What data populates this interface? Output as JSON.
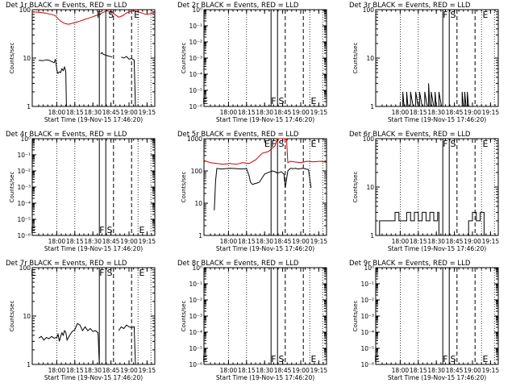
{
  "figure": {
    "xlabel": "Start Time (19-Nov-15 17:46:20)",
    "ylabel": "Counts/sec",
    "x_ticks": [
      "18:00",
      "18:15",
      "18:30",
      "18:45",
      "19:00",
      "19:15"
    ],
    "marker_letters": [
      "F",
      "S",
      "E"
    ],
    "colors": {
      "events": "#000000",
      "lld": "#d00000",
      "axes": "#000000"
    }
  },
  "chart_data": [
    {
      "type": "line",
      "title": "Det 1r BLACK = Events, RED = LLD",
      "xlabel": "Start Time (19-Nov-15 17:46:20)",
      "ylabel": "Counts/sec",
      "yscale": "log",
      "ylim": [
        1,
        100
      ],
      "y_tick_labels": [
        "1",
        "10",
        "100"
      ],
      "xlim_minutes": [
        -5,
        90
      ],
      "solid_lines_minutes": [
        47,
        52
      ],
      "dashed_lines_minutes": [
        58,
        72
      ],
      "dotted_lines_minutes": [
        14,
        28,
        77,
        87
      ],
      "markers": [
        {
          "text": "F",
          "x": 47,
          "pos": "top"
        },
        {
          "text": "S",
          "x": 56,
          "pos": "top"
        },
        {
          "text": "E",
          "x": 76,
          "pos": "top"
        }
      ],
      "series": [
        {
          "name": "BLACK = Events",
          "color": "#000000",
          "x": [
            0,
            3,
            6,
            8,
            10,
            12,
            13,
            14,
            14.5,
            15,
            16,
            17,
            18,
            19,
            20,
            21,
            21.5
          ],
          "y": [
            9,
            8.8,
            9.2,
            9,
            8.5,
            8,
            9.5,
            6,
            5,
            4.8,
            5.2,
            5,
            6,
            5.5,
            6.5,
            5.2,
            1
          ]
        },
        {
          "name": "BLACK = Events",
          "color": "#000000",
          "x": [
            48,
            49,
            50,
            52,
            54,
            57
          ],
          "y": [
            12,
            13,
            12,
            11.5,
            11,
            10.5
          ]
        },
        {
          "name": "BLACK = Events",
          "color": "#000000",
          "x": [
            64,
            66,
            68,
            70,
            72,
            74,
            75
          ],
          "y": [
            10.5,
            10,
            10.8,
            9.5,
            9.8,
            9,
            1
          ]
        },
        {
          "name": "RED = LLD",
          "color": "#d00000",
          "x": [
            -5,
            0,
            5,
            10,
            13,
            15,
            17,
            20,
            23,
            26,
            29,
            32,
            35,
            38,
            41,
            44,
            47,
            50,
            53,
            56,
            59,
            62,
            65,
            68,
            71,
            74,
            77,
            80,
            83,
            86,
            90
          ],
          "y": [
            90,
            88,
            85,
            80,
            75,
            65,
            58,
            52,
            50,
            52,
            55,
            58,
            62,
            66,
            70,
            75,
            80,
            88,
            95,
            90,
            80,
            70,
            75,
            85,
            92,
            95,
            90,
            85,
            80,
            82,
            88
          ]
        }
      ]
    },
    {
      "type": "line",
      "title": "Det 2r BLACK = Events, RED = LLD",
      "xlabel": "Start Time (19-Nov-15 17:46:20)",
      "ylabel": "Counts/sec",
      "yscale": "log",
      "ylim": [
        1e-06,
        1
      ],
      "y_tick_labels": [
        "10⁰",
        "10⁻¹",
        "10⁻²",
        "10⁻³",
        "10⁻⁴",
        "10⁻⁵",
        "10⁻⁶"
      ],
      "xlim_minutes": [
        -5,
        90
      ],
      "solid_lines_minutes": [
        47,
        52
      ],
      "dashed_lines_minutes": [
        58,
        72
      ],
      "dotted_lines_minutes": [
        14,
        28,
        77,
        87
      ],
      "markers": [
        {
          "text": "E",
          "x": -4,
          "pos": "bottom"
        },
        {
          "text": "F",
          "x": 49,
          "pos": "bottom"
        },
        {
          "text": "S",
          "x": 55,
          "pos": "bottom"
        },
        {
          "text": "E",
          "x": 80,
          "pos": "bottom"
        }
      ],
      "series": []
    },
    {
      "type": "line",
      "title": "Det 3r BLACK = Events, RED = LLD",
      "xlabel": "Start Time (19-Nov-15 17:46:20)",
      "ylabel": "Counts/sec",
      "yscale": "log",
      "ylim": [
        1,
        100
      ],
      "y_tick_labels": [
        "1",
        "10",
        "100"
      ],
      "xlim_minutes": [
        -5,
        90
      ],
      "solid_lines_minutes": [
        47,
        52
      ],
      "dashed_lines_minutes": [
        58,
        72
      ],
      "dotted_lines_minutes": [
        14,
        28,
        77,
        87
      ],
      "markers": [
        {
          "text": "F",
          "x": 49,
          "pos": "top"
        },
        {
          "text": "S",
          "x": 55,
          "pos": "top"
        },
        {
          "text": "E",
          "x": 80,
          "pos": "top"
        }
      ],
      "series": [
        {
          "name": "BLACK = Events",
          "color": "#000000",
          "x": [
            15,
            16,
            16,
            17,
            19,
            19,
            20,
            22,
            22,
            24,
            26,
            26,
            28,
            29,
            29,
            31,
            33,
            33,
            35,
            36,
            36,
            37,
            38,
            38,
            40,
            41,
            41,
            42,
            44,
            44,
            46
          ],
          "y": [
            1,
            1,
            2,
            1,
            1,
            2,
            1,
            1,
            2,
            1,
            1,
            2,
            1,
            1,
            2,
            1,
            1,
            2,
            1,
            1,
            3,
            1,
            1,
            2,
            1,
            1,
            2,
            1,
            1,
            2,
            1
          ]
        },
        {
          "name": "BLACK = Events",
          "color": "#000000",
          "x": [
            62,
            62,
            63,
            64,
            64,
            65,
            66,
            66,
            67
          ],
          "y": [
            1,
            2,
            1,
            1,
            2,
            1,
            1,
            2,
            1
          ]
        }
      ]
    },
    {
      "type": "line",
      "title": "Det 4r BLACK = Events, RED = LLD",
      "xlabel": "Start Time (19-Nov-15 17:46:20)",
      "ylabel": "Counts/sec",
      "yscale": "log",
      "ylim": [
        1e-06,
        1
      ],
      "y_tick_labels": [
        "10⁰",
        "10⁻¹",
        "10⁻²",
        "10⁻³",
        "10⁻⁴",
        "10⁻⁵",
        "10⁻⁶"
      ],
      "xlim_minutes": [
        -5,
        90
      ],
      "solid_lines_minutes": [
        47,
        52
      ],
      "dashed_lines_minutes": [
        58,
        72
      ],
      "dotted_lines_minutes": [
        14,
        28,
        77,
        87
      ],
      "markers": [
        {
          "text": "E",
          "x": -4,
          "pos": "bottom"
        },
        {
          "text": "F",
          "x": 49,
          "pos": "bottom"
        },
        {
          "text": "S",
          "x": 55,
          "pos": "bottom"
        },
        {
          "text": "E",
          "x": 80,
          "pos": "bottom"
        }
      ],
      "series": []
    },
    {
      "type": "line",
      "title": "Det 5r BLACK = Events, RED = LLD",
      "xlabel": "Start Time (19-Nov-15 17:46:20)",
      "ylabel": "Counts/sec",
      "yscale": "log",
      "ylim": [
        1,
        1000
      ],
      "y_tick_labels": [
        "1",
        "10",
        "100",
        "1000"
      ],
      "xlim_minutes": [
        -5,
        90
      ],
      "solid_lines_minutes": [
        47,
        52
      ],
      "dashed_lines_minutes": [
        58,
        72
      ],
      "dotted_lines_minutes": [
        14,
        28,
        77,
        87
      ],
      "markers": [
        {
          "text": "E",
          "x": 44,
          "pos": "top"
        },
        {
          "text": "F",
          "x": 49,
          "pos": "top"
        },
        {
          "text": "S",
          "x": 55,
          "pos": "top"
        },
        {
          "text": "E",
          "x": 80,
          "pos": "top"
        }
      ],
      "series": [
        {
          "name": "BLACK = Events",
          "color": "#000000",
          "x": [
            3,
            4,
            5,
            8,
            12,
            16,
            20,
            24,
            28,
            30,
            31,
            32,
            33,
            34,
            36,
            38,
            40,
            42,
            45,
            48,
            50,
            52,
            55,
            57,
            58,
            60,
            62,
            64,
            66,
            68,
            70,
            72,
            74,
            76,
            78
          ],
          "y": [
            6,
            50,
            120,
            115,
            118,
            120,
            118,
            115,
            118,
            70,
            45,
            40,
            38,
            40,
            42,
            45,
            60,
            80,
            90,
            100,
            95,
            85,
            95,
            80,
            30,
            100,
            120,
            118,
            120,
            115,
            118,
            120,
            115,
            110,
            30
          ]
        },
        {
          "name": "RED = LLD",
          "color": "#d00000",
          "x": [
            -5,
            0,
            5,
            10,
            15,
            20,
            25,
            30,
            35,
            40,
            45,
            50,
            52,
            54,
            56,
            58,
            59,
            60,
            62,
            65,
            70,
            75,
            80,
            85,
            90
          ],
          "y": [
            210,
            180,
            170,
            160,
            170,
            160,
            180,
            170,
            220,
            350,
            400,
            600,
            1000,
            1000,
            1000,
            1000,
            1000,
            180,
            200,
            190,
            180,
            200,
            190,
            200,
            185
          ]
        }
      ]
    },
    {
      "type": "line",
      "title": "Det 6r BLACK = Events, RED = LLD",
      "xlabel": "Start Time (19-Nov-15 17:46:20)",
      "ylabel": "Counts/sec",
      "yscale": "log",
      "ylim": [
        1,
        100
      ],
      "y_tick_labels": [
        "1",
        "10",
        "100"
      ],
      "xlim_minutes": [
        -5,
        90
      ],
      "solid_lines_minutes": [
        47,
        52
      ],
      "dashed_lines_minutes": [
        58,
        72
      ],
      "dotted_lines_minutes": [
        14,
        28,
        77,
        87
      ],
      "markers": [
        {
          "text": "F",
          "x": 49,
          "pos": "top"
        },
        {
          "text": "S",
          "x": 55,
          "pos": "top"
        },
        {
          "text": "E",
          "x": 80,
          "pos": "top"
        }
      ],
      "series": [
        {
          "name": "BLACK = Events",
          "color": "#000000",
          "x": [
            -2,
            -2,
            3,
            3,
            8,
            8,
            10,
            10,
            13,
            13,
            16,
            16,
            19,
            19,
            22,
            22,
            25,
            25,
            28,
            28,
            31,
            31,
            34,
            34,
            37,
            37,
            40,
            40,
            43,
            43,
            44,
            44
          ],
          "y": [
            1,
            2,
            2,
            2,
            2,
            2,
            2,
            3,
            3,
            2,
            2,
            2,
            2,
            3,
            3,
            2,
            2,
            3,
            3,
            2,
            2,
            3,
            3,
            2,
            2,
            3,
            3,
            2,
            2,
            3,
            3,
            1
          ]
        },
        {
          "name": "BLACK = Events",
          "color": "#000000",
          "x": [
            67,
            67,
            70,
            70,
            73,
            73,
            76,
            76,
            79,
            79
          ],
          "y": [
            1,
            2,
            2,
            3,
            3,
            2,
            2,
            3,
            3,
            1
          ]
        }
      ]
    },
    {
      "type": "line",
      "title": "Det 7r BLACK = Events, RED = LLD",
      "xlabel": "Start Time (19-Nov-15 17:46:20)",
      "ylabel": "Counts/sec",
      "yscale": "log",
      "ylim": [
        1,
        100
      ],
      "y_tick_labels": [
        "1",
        "10",
        "100"
      ],
      "xlim_minutes": [
        -5,
        90
      ],
      "solid_lines_minutes": [
        47,
        52
      ],
      "dashed_lines_minutes": [
        58,
        72
      ],
      "dotted_lines_minutes": [
        14,
        28,
        77,
        87
      ],
      "markers": [
        {
          "text": "E",
          "x": -4,
          "pos": "top"
        },
        {
          "text": "F",
          "x": 49,
          "pos": "top"
        },
        {
          "text": "S",
          "x": 55,
          "pos": "top"
        },
        {
          "text": "E",
          "x": 80,
          "pos": "top"
        }
      ],
      "series": [
        {
          "name": "BLACK = Events",
          "color": "#000000",
          "x": [
            0,
            2,
            4,
            6,
            8,
            10,
            12,
            14,
            15,
            16,
            17,
            18,
            19,
            20,
            21,
            22,
            24,
            26,
            28,
            30,
            32,
            34,
            36,
            38,
            40,
            42,
            44,
            46,
            47
          ],
          "y": [
            3.5,
            3.8,
            3.2,
            3.6,
            3.4,
            3.8,
            3.5,
            3.6,
            4.2,
            3,
            3.8,
            4.5,
            4,
            5,
            4.6,
            3.2,
            4,
            4.8,
            5.2,
            7,
            6.5,
            5,
            6,
            5,
            5.5,
            4.8,
            5,
            4.5,
            1
          ]
        },
        {
          "name": "BLACK = Events",
          "color": "#000000",
          "x": [
            62,
            64,
            66,
            68,
            70,
            72,
            74,
            75
          ],
          "y": [
            5,
            6,
            5.5,
            6.5,
            6,
            5.8,
            6,
            1
          ]
        }
      ]
    },
    {
      "type": "line",
      "title": "Det 8r BLACK = Events, RED = LLD",
      "xlabel": "Start Time (19-Nov-15 17:46:20)",
      "ylabel": "Counts/sec",
      "yscale": "log",
      "ylim": [
        1e-06,
        1
      ],
      "y_tick_labels": [
        "10⁰",
        "10⁻¹",
        "10⁻²",
        "10⁻³",
        "10⁻⁴",
        "10⁻⁵",
        "10⁻⁶"
      ],
      "xlim_minutes": [
        -5,
        90
      ],
      "solid_lines_minutes": [
        47,
        52
      ],
      "dashed_lines_minutes": [
        58,
        72
      ],
      "dotted_lines_minutes": [
        14,
        28,
        77,
        87
      ],
      "markers": [
        {
          "text": "E",
          "x": -4,
          "pos": "bottom"
        },
        {
          "text": "F",
          "x": 49,
          "pos": "bottom"
        },
        {
          "text": "S",
          "x": 55,
          "pos": "bottom"
        },
        {
          "text": "E",
          "x": 80,
          "pos": "bottom"
        }
      ],
      "series": []
    },
    {
      "type": "line",
      "title": "Det 9r BLACK = Events, RED = LLD",
      "xlabel": "Start Time (19-Nov-15 17:46:20)",
      "ylabel": "Counts/sec",
      "yscale": "log",
      "ylim": [
        1e-06,
        1
      ],
      "y_tick_labels": [
        "10⁰",
        "10⁻¹",
        "10⁻²",
        "10⁻³",
        "10⁻⁴",
        "10⁻⁵",
        "10⁻⁶"
      ],
      "xlim_minutes": [
        -5,
        90
      ],
      "solid_lines_minutes": [
        47,
        52
      ],
      "dashed_lines_minutes": [
        58,
        72
      ],
      "dotted_lines_minutes": [
        14,
        28,
        77,
        87
      ],
      "markers": [
        {
          "text": "E",
          "x": -4,
          "pos": "bottom"
        },
        {
          "text": "F",
          "x": 49,
          "pos": "bottom"
        },
        {
          "text": "S",
          "x": 55,
          "pos": "bottom"
        },
        {
          "text": "E",
          "x": 80,
          "pos": "bottom"
        }
      ],
      "series": []
    }
  ]
}
